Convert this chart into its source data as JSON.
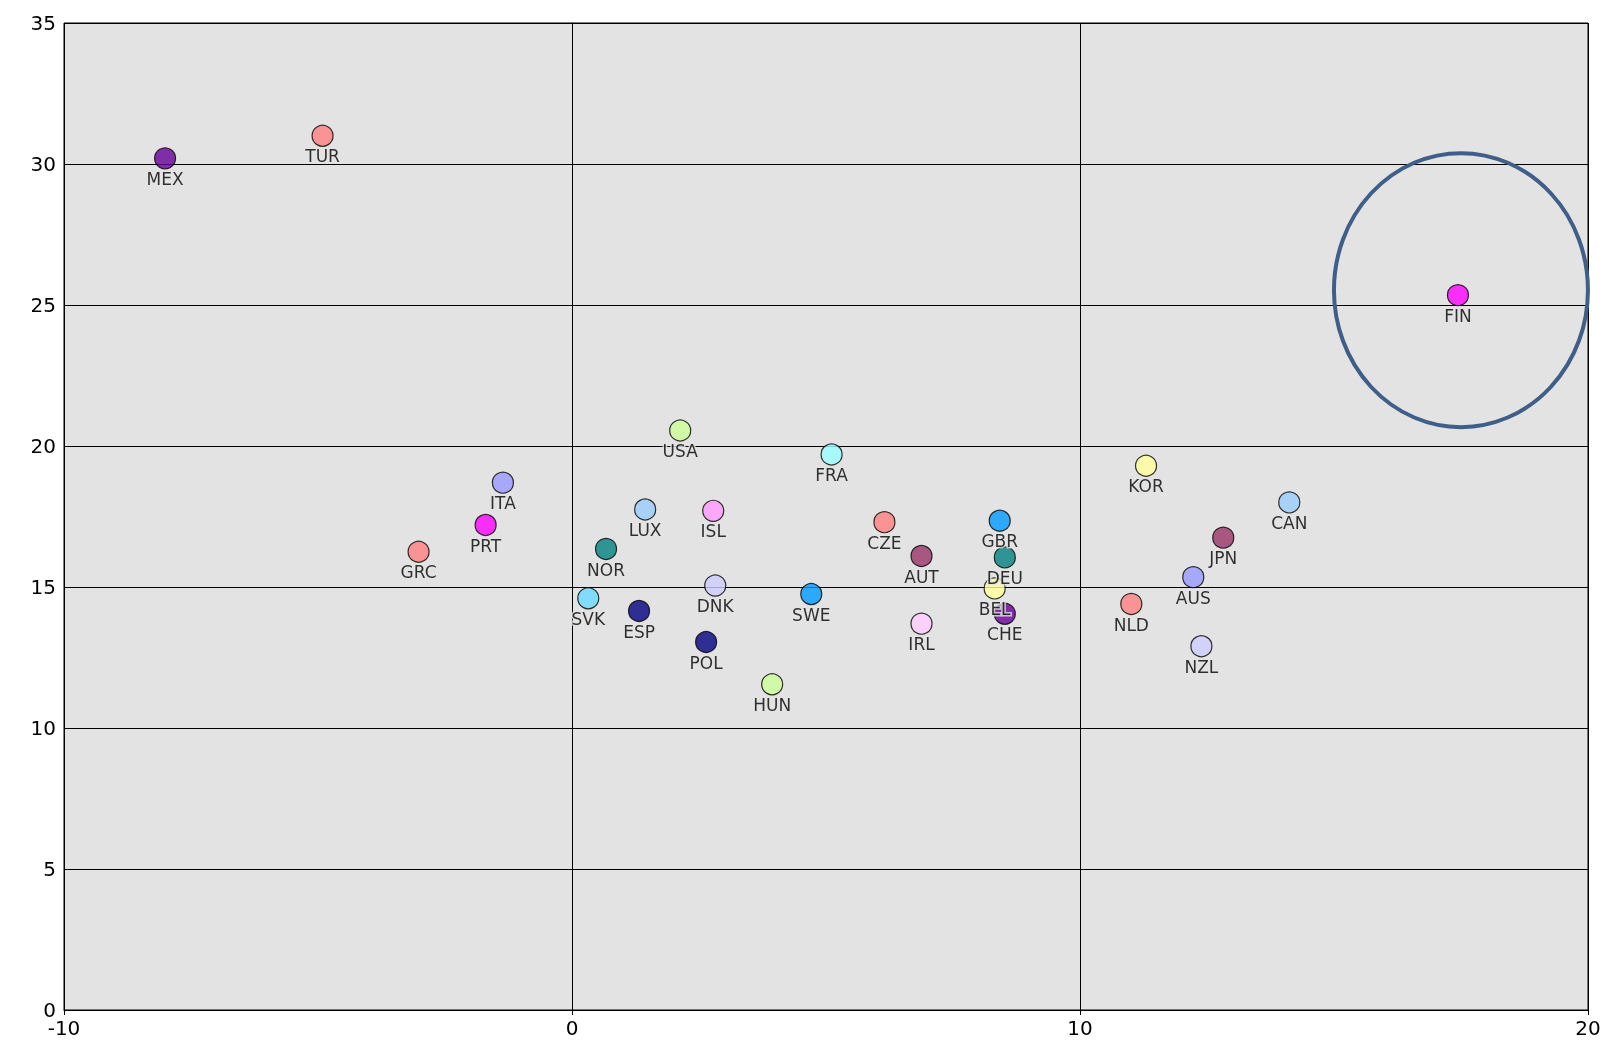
{
  "chart_data": {
    "type": "scatter",
    "x": [
      -8.01,
      -4.91,
      17.44,
      2.13,
      5.11,
      -1.36,
      -1.7,
      -3.02,
      1.44,
      2.78,
      0.67,
      0.32,
      1.32,
      2.82,
      2.64,
      3.94,
      4.71,
      6.15,
      6.88,
      6.88,
      8.42,
      8.52,
      8.32,
      8.52,
      11.3,
      11.01,
      12.23,
      12.39,
      12.82,
      14.12
    ],
    "values": [
      30.2,
      31.0,
      25.35,
      20.55,
      19.7,
      18.7,
      17.2,
      16.25,
      17.75,
      17.7,
      16.35,
      14.6,
      14.15,
      15.05,
      13.05,
      11.55,
      14.75,
      17.3,
      16.1,
      13.7,
      17.35,
      16.05,
      14.95,
      14.05,
      19.3,
      14.4,
      15.35,
      12.9,
      16.75,
      18.0
    ],
    "value_labels": [
      "MEX",
      "TUR",
      "FIN",
      "USA",
      "FRA",
      "ITA",
      "PRT",
      "GRC",
      "LUX",
      "ISL",
      "NOR",
      "SVK",
      "ESP",
      "DNK",
      "POL",
      "HUN",
      "SWE",
      "CZE",
      "AUT",
      "IRL",
      "GBR",
      "DEU",
      "BEL",
      "CHE",
      "KOR",
      "NLD",
      "AUS",
      "NZL",
      "JPN",
      "CAN"
    ],
    "colors": [
      "#660099",
      "#ff8080",
      "#ff00ff",
      "#ccff99",
      "#99ffff",
      "#9999ff",
      "#ff00ff",
      "#ff8080",
      "#99ccff",
      "#ff99ff",
      "#008080",
      "#66d9ff",
      "#000080",
      "#ccccff",
      "#000080",
      "#ccff99",
      "#0099ff",
      "#ff8080",
      "#993366",
      "#ffccff",
      "#0099ff",
      "#008080",
      "#ffff99",
      "#660099",
      "#ffff99",
      "#ff8080",
      "#9999ff",
      "#ccccff",
      "#993366",
      "#99ccff"
    ],
    "xlim": [
      -10,
      20
    ],
    "xticks": [
      -10,
      0,
      10,
      20
    ],
    "ylim": [
      0,
      35
    ],
    "yticks": [
      0,
      5,
      10,
      15,
      20,
      25,
      30,
      35
    ],
    "grid": true,
    "marker": "circle"
  }
}
